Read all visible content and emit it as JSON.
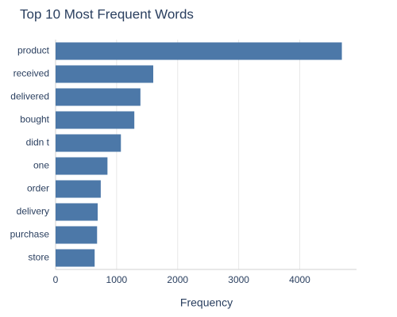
{
  "chart_data": {
    "type": "bar",
    "orientation": "horizontal",
    "title": "Top 10 Most Frequent Words",
    "x_label": "Frequency",
    "categories": [
      "product",
      "received",
      "delivered",
      "bought",
      "didn t",
      "one",
      "order",
      "delivery",
      "purchase",
      "store"
    ],
    "values": [
      4690,
      1600,
      1390,
      1290,
      1070,
      850,
      740,
      690,
      680,
      640
    ],
    "color": "#4c78a8",
    "xlim": [
      0,
      4930
    ],
    "xticks": [
      0,
      1000,
      2000,
      3000,
      4000
    ],
    "grid": true
  }
}
